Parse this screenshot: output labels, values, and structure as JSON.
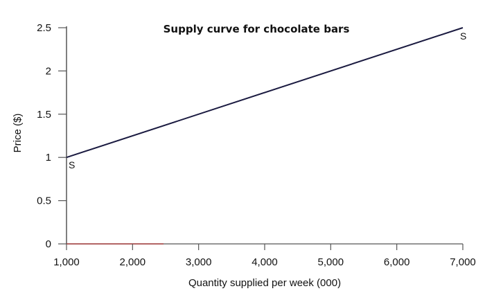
{
  "chart_data": {
    "type": "line",
    "title": "Supply curve for chocolate bars",
    "xlabel": "Quantity supplied per week (000)",
    "ylabel": "Price ($)",
    "xlim": [
      1000,
      7000
    ],
    "ylim": [
      0,
      2.5
    ],
    "x_ticks": [
      "1,000",
      "2,000",
      "3,000",
      "4,000",
      "5,000",
      "6,000",
      "7,000"
    ],
    "x_tick_values": [
      1000,
      2000,
      3000,
      4000,
      5000,
      6000,
      7000
    ],
    "y_ticks": [
      "0",
      "0.5",
      "1",
      "1.5",
      "2",
      "2.5"
    ],
    "y_tick_values": [
      0,
      0.5,
      1,
      1.5,
      2,
      2.5
    ],
    "grid": false,
    "series": [
      {
        "name": "S",
        "x": [
          1000,
          7000
        ],
        "y": [
          1,
          2.5
        ]
      }
    ],
    "curve_labels": [
      {
        "text": "S",
        "x": 1000,
        "y": 1,
        "placement": "below-right"
      },
      {
        "text": "S",
        "x": 7000,
        "y": 2.5,
        "placement": "below"
      }
    ],
    "colors": {
      "axis": "#555555",
      "line": "#1a1a40",
      "baseline_accent": "#b03030"
    }
  }
}
